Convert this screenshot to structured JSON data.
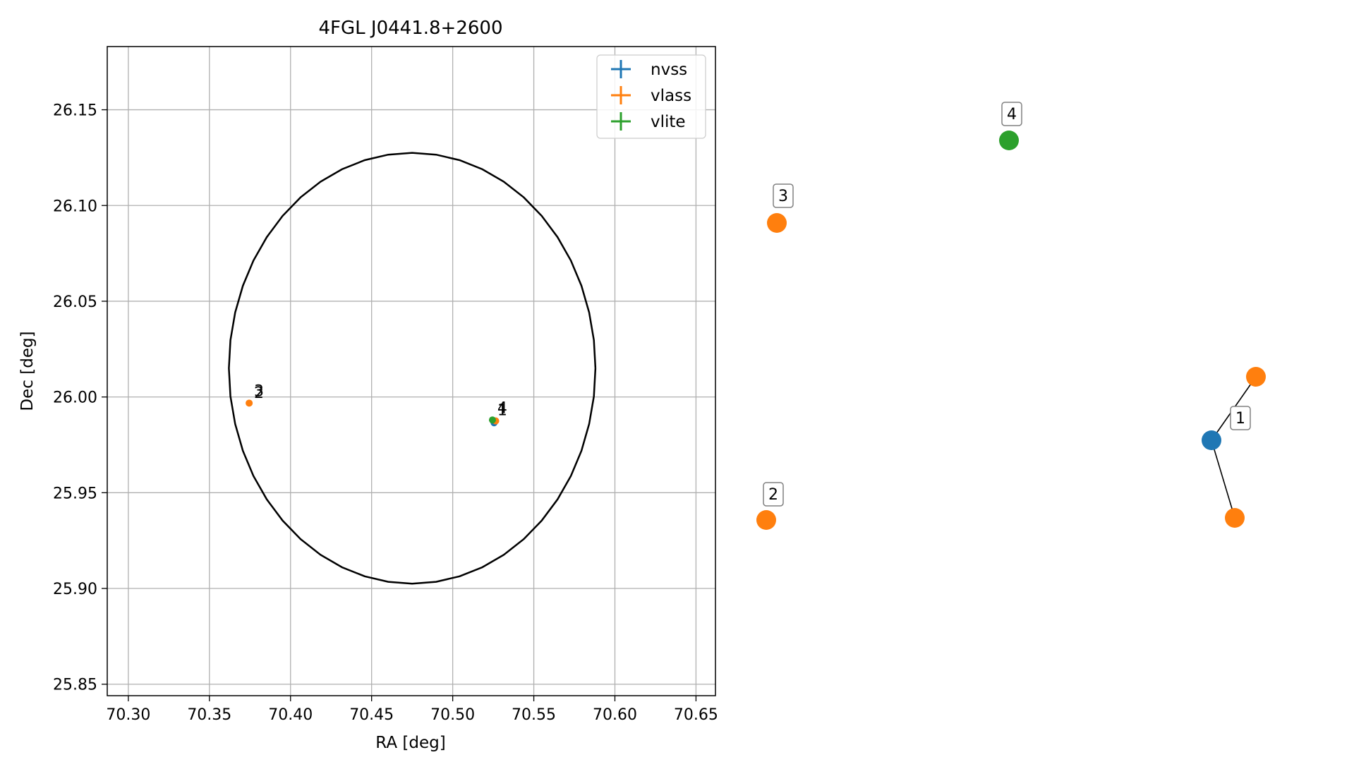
{
  "colors": {
    "nvss": "#1f77b4",
    "vlass": "#ff7f0e",
    "vlite": "#2ca02c",
    "grid": "#b0b0b0",
    "ellipse": "#000000"
  },
  "chart_data": [
    {
      "type": "scatter",
      "title": "4FGL J0441.8+2600",
      "xlabel": "RA [deg]",
      "ylabel": "Dec [deg]",
      "xlim": [
        70.287,
        70.662
      ],
      "ylim": [
        25.844,
        26.183
      ],
      "xticks": [
        "70.30",
        "70.35",
        "70.40",
        "70.45",
        "70.50",
        "70.55",
        "70.60",
        "70.65"
      ],
      "yticks": [
        "25.85",
        "25.90",
        "25.95",
        "26.00",
        "26.05",
        "26.10",
        "26.15"
      ],
      "grid": true,
      "legend_position": "top-right",
      "legend": [
        "nvss",
        "vlass",
        "vlite"
      ],
      "ellipse": {
        "center_ra": 70.475,
        "center_dec": 26.015,
        "half_width_ra": 0.113,
        "half_height_dec": 0.1125
      },
      "series": [
        {
          "name": "nvss",
          "points": [
            {
              "ra": 70.5255,
              "dec": 25.9865
            }
          ]
        },
        {
          "name": "vlass",
          "points": [
            {
              "ra": 70.3745,
              "dec": 25.9968
            },
            {
              "ra": 70.5265,
              "dec": 25.9875
            }
          ]
        },
        {
          "name": "vlite",
          "points": [
            {
              "ra": 70.5245,
              "dec": 25.988
            }
          ]
        }
      ],
      "annotations": [
        {
          "text": "3",
          "ra": 70.3775,
          "dec": 26.0005
        },
        {
          "text": "2",
          "ra": 70.3775,
          "dec": 25.9995
        },
        {
          "text": "4",
          "ra": 70.5275,
          "dec": 25.9915
        },
        {
          "text": "1",
          "ra": 70.5275,
          "dec": 25.9905
        }
      ]
    },
    {
      "type": "scatter",
      "title": "",
      "points": [
        {
          "series": "vlite",
          "label": "4"
        },
        {
          "series": "vlass",
          "label": "3"
        },
        {
          "series": "vlass",
          "label": ""
        },
        {
          "series": "nvss",
          "label": "1"
        },
        {
          "series": "vlass",
          "label": ""
        },
        {
          "series": "vlass",
          "label": "2"
        }
      ],
      "links": [
        {
          "from": 3,
          "to": 2
        },
        {
          "from": 3,
          "to": 4
        }
      ]
    }
  ]
}
